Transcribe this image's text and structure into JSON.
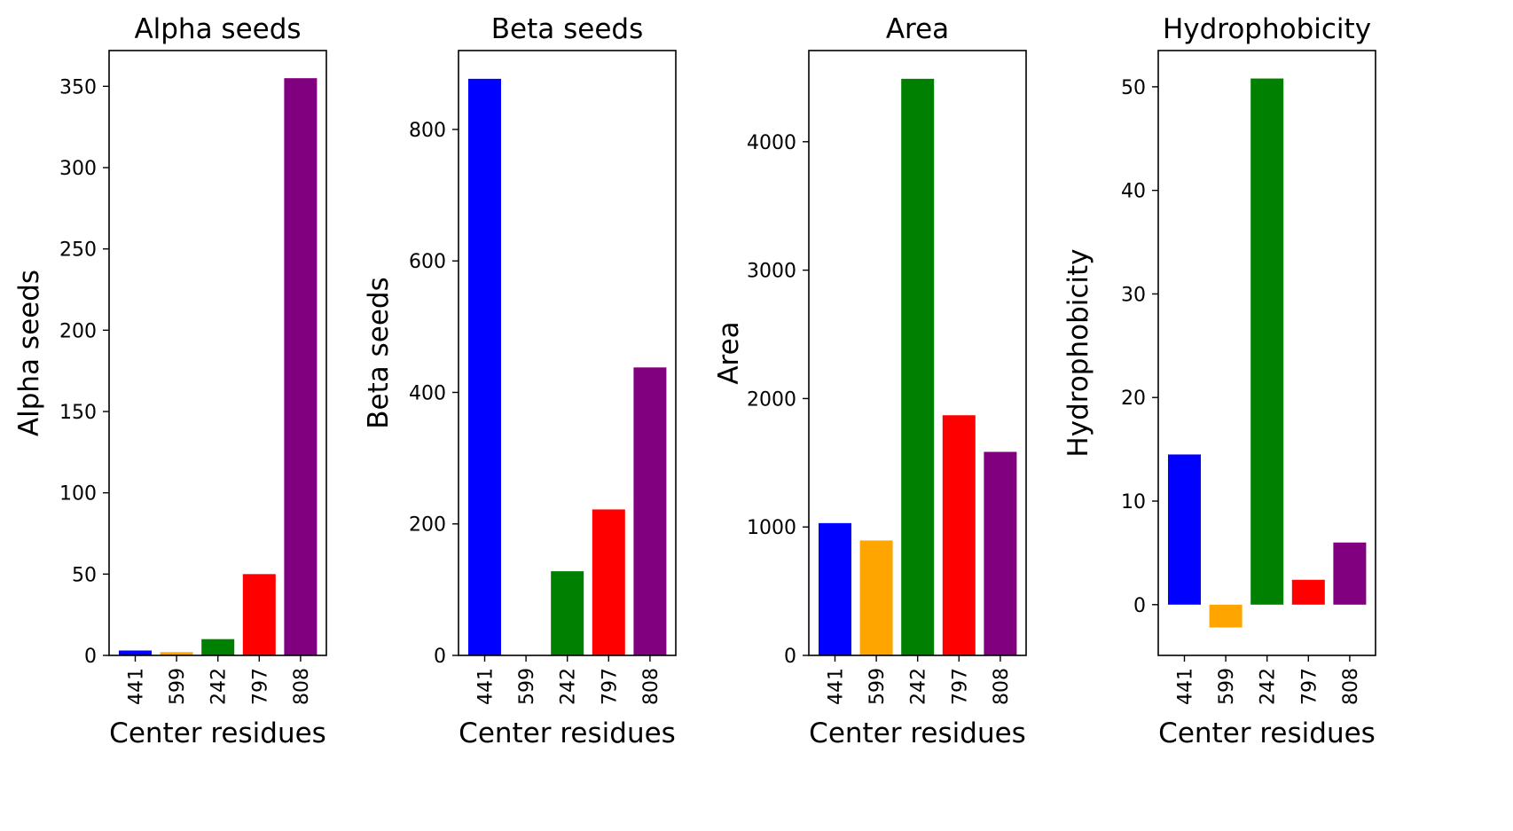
{
  "figure": {
    "colors": [
      "#0000ff",
      "#ffa500",
      "#008000",
      "#ff0000",
      "#800080"
    ]
  },
  "chart_data": [
    {
      "type": "bar",
      "title": "Alpha seeds",
      "xlabel": "Center residues",
      "ylabel": "Alpha seeds",
      "categories": [
        "441",
        "599",
        "242",
        "797",
        "808"
      ],
      "values": [
        3,
        2,
        10,
        50,
        355
      ],
      "ylim": [
        0,
        372
      ],
      "yticks": [
        0,
        50,
        100,
        150,
        200,
        250,
        300,
        350
      ],
      "grid": false
    },
    {
      "type": "bar",
      "title": "Beta seeds",
      "xlabel": "Center residues",
      "ylabel": "Beta seeds",
      "categories": [
        "441",
        "599",
        "242",
        "797",
        "808"
      ],
      "values": [
        877,
        0,
        128,
        222,
        438
      ],
      "ylim": [
        0,
        920
      ],
      "yticks": [
        0,
        200,
        400,
        600,
        800
      ],
      "grid": false
    },
    {
      "type": "bar",
      "title": "Area",
      "xlabel": "Center residues",
      "ylabel": "Area",
      "categories": [
        "441",
        "599",
        "242",
        "797",
        "808"
      ],
      "values": [
        1030,
        895,
        4490,
        1870,
        1585
      ],
      "ylim": [
        0,
        4710
      ],
      "yticks": [
        0,
        1000,
        2000,
        3000,
        4000
      ],
      "grid": false
    },
    {
      "type": "bar",
      "title": "Hydrophobicity",
      "xlabel": "Center residues",
      "ylabel": "Hydrophobicity",
      "categories": [
        "441",
        "599",
        "242",
        "797",
        "808"
      ],
      "values": [
        14.5,
        -2.2,
        50.8,
        2.4,
        6.0
      ],
      "ylim": [
        -4.9,
        53.5
      ],
      "yticks": [
        0,
        10,
        20,
        30,
        40,
        50
      ],
      "grid": false
    }
  ]
}
